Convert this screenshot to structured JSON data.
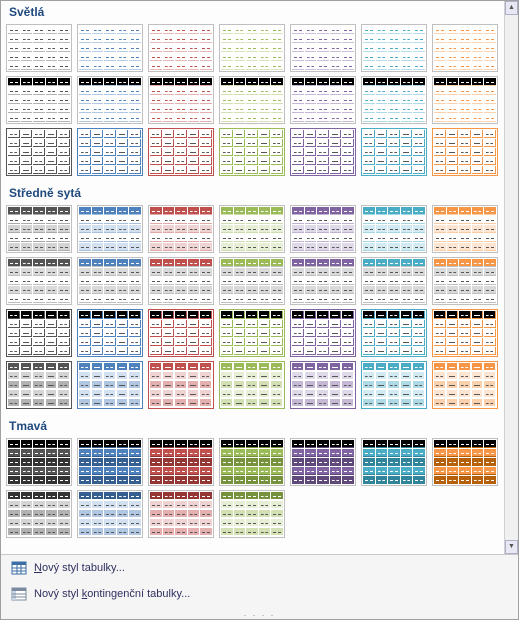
{
  "sections": [
    {
      "title": "Světlá"
    },
    {
      "title": "Středně sytá"
    },
    {
      "title": "Tmavá"
    }
  ],
  "footer": {
    "new_table_style": "Nový styl tabulky...",
    "new_pivot_style": "Nový styl kontingenční tabulky..."
  },
  "palette": {
    "accents": [
      "#545454",
      "#4f81bd",
      "#c0504d",
      "#9bbb59",
      "#8064a2",
      "#4bacc6",
      "#f79646"
    ],
    "accents_dark": [
      "#333333",
      "#365f91",
      "#943634",
      "#76923c",
      "#5f497a",
      "#31859b",
      "#b66009"
    ],
    "black": "#000000",
    "white": "#ffffff",
    "light_gray": "#d9d9d9",
    "lighter_tint": 0.75,
    "mid_tint": 0.55
  },
  "layout": {
    "cols": 7,
    "light_rows": 3,
    "medium_rows": 4,
    "dark_rows": 2,
    "dark_last_row_cols": 4
  }
}
